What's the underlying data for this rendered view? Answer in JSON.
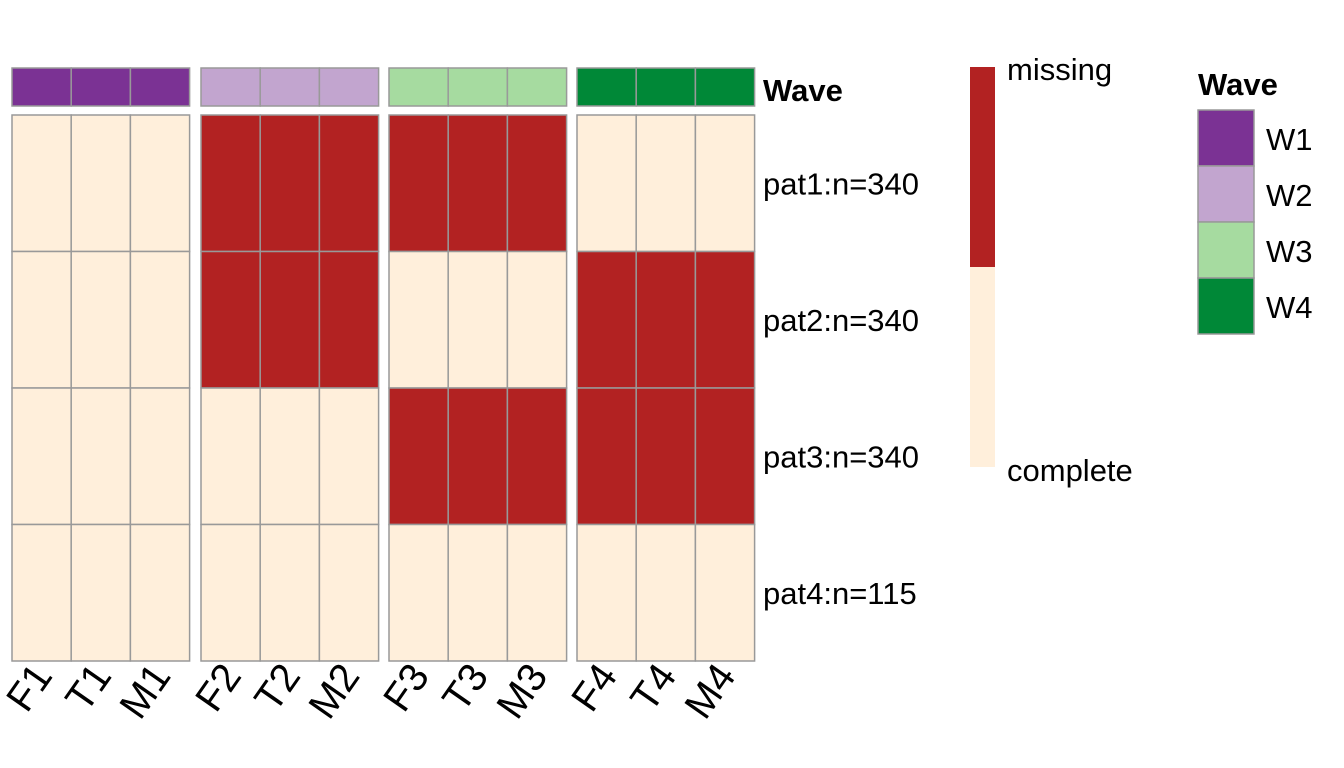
{
  "chart_data": {
    "type": "heatmap",
    "columns": [
      "F1",
      "T1",
      "M1",
      "F2",
      "T2",
      "M2",
      "F3",
      "T3",
      "M3",
      "F4",
      "T4",
      "M4"
    ],
    "column_groups": [
      "W1",
      "W1",
      "W1",
      "W2",
      "W2",
      "W2",
      "W3",
      "W3",
      "W3",
      "W4",
      "W4",
      "W4"
    ],
    "rows": [
      "pat1:n=340",
      "pat2:n=340",
      "pat3:n=340",
      "pat4:n=115"
    ],
    "values": [
      [
        "complete",
        "complete",
        "complete",
        "missing",
        "missing",
        "missing",
        "missing",
        "missing",
        "missing",
        "complete",
        "complete",
        "complete"
      ],
      [
        "complete",
        "complete",
        "complete",
        "missing",
        "missing",
        "missing",
        "complete",
        "complete",
        "complete",
        "missing",
        "missing",
        "missing"
      ],
      [
        "complete",
        "complete",
        "complete",
        "complete",
        "complete",
        "complete",
        "missing",
        "missing",
        "missing",
        "missing",
        "missing",
        "missing"
      ],
      [
        "complete",
        "complete",
        "complete",
        "complete",
        "complete",
        "complete",
        "complete",
        "complete",
        "complete",
        "complete",
        "complete",
        "complete"
      ]
    ],
    "annotation_label": "Wave",
    "value_legend": {
      "levels": [
        "missing",
        "complete"
      ],
      "colors": {
        "missing": "#B22222",
        "complete": "#FFEFDB"
      }
    },
    "group_legend": {
      "title": "Wave",
      "levels": [
        "W1",
        "W2",
        "W3",
        "W4"
      ],
      "colors": {
        "W1": "#7B3294",
        "W2": "#C2A5CF",
        "W3": "#A6DBA0",
        "W4": "#008837"
      }
    },
    "border_color": "#999999"
  }
}
